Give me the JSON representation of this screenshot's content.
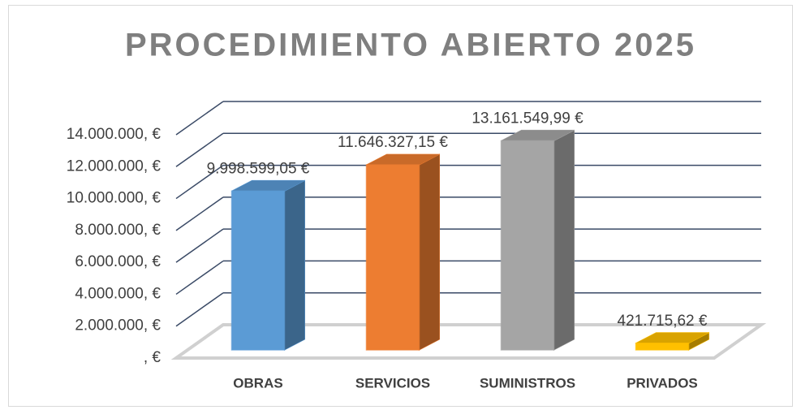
{
  "chart_data": {
    "type": "bar3d",
    "title": "PROCEDIMIENTO ABIERTO 2025",
    "categories": [
      "OBRAS",
      "SERVICIOS",
      "SUMINISTROS",
      "PRIVADOS"
    ],
    "values": [
      9998599.05,
      11646327.15,
      13161549.99,
      421715.62
    ],
    "value_labels": [
      "9.998.599,05 €",
      "11.646.327,15 €",
      "13.161.549,99 €",
      "421.715,62 €"
    ],
    "colors": [
      "#5b9bd5",
      "#ed7d31",
      "#a5a5a5",
      "#ffc000"
    ],
    "ylim": [
      0,
      14000000
    ],
    "yticks": [
      {
        "value": 0,
        "label": ", €"
      },
      {
        "value": 2000000,
        "label": "2.000.000, €"
      },
      {
        "value": 4000000,
        "label": "4.000.000, €"
      },
      {
        "value": 6000000,
        "label": "6.000.000, €"
      },
      {
        "value": 8000000,
        "label": "8.000.000, €"
      },
      {
        "value": 10000000,
        "label": "10.000.000, €"
      },
      {
        "value": 12000000,
        "label": "12.000.000, €"
      },
      {
        "value": 14000000,
        "label": "14.000.000, €"
      }
    ],
    "grid": true
  }
}
